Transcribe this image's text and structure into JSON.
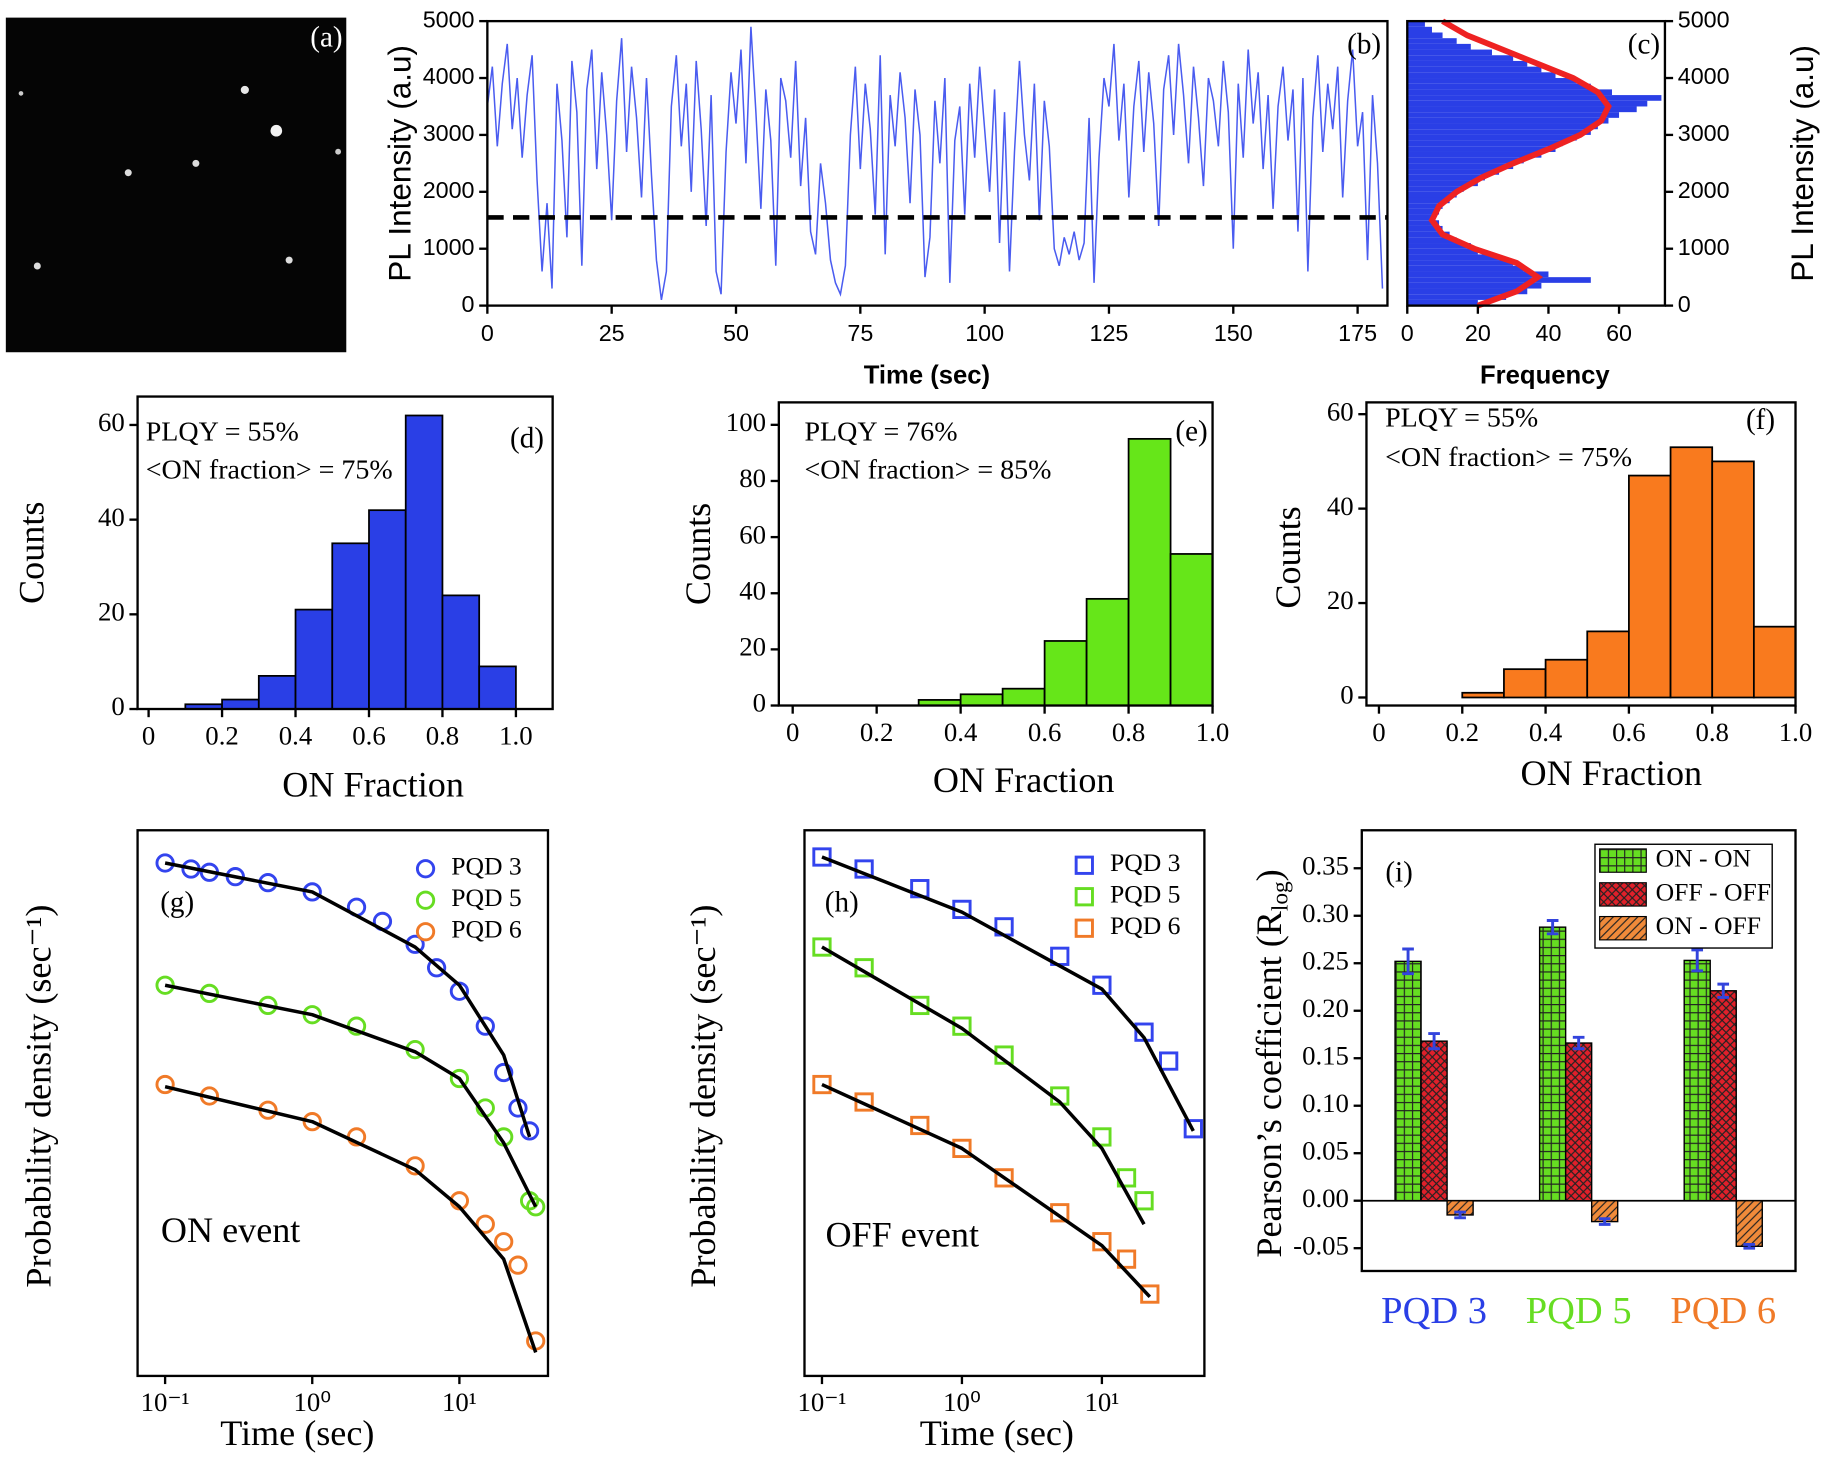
{
  "chart_data": [
    {
      "type": "image",
      "label": "(a)"
    },
    {
      "type": "line",
      "label": "(b)",
      "xlabel": "Time (sec)",
      "ylabel": "PL Intensity (a.u)",
      "xlim": [
        0,
        181
      ],
      "ylim": [
        0,
        5000
      ],
      "xticks": [
        0,
        25,
        50,
        75,
        100,
        125,
        150,
        175
      ],
      "yticks": [
        0,
        1000,
        2000,
        3000,
        4000,
        5000
      ],
      "color": "#4a5cf0",
      "threshold": 1550,
      "threshold_color": "#000000",
      "x": [
        0,
        1,
        2,
        3,
        4,
        5,
        6,
        7,
        8,
        9,
        10,
        11,
        12,
        13,
        14,
        15,
        16,
        17,
        18,
        19,
        20,
        21,
        22,
        23,
        24,
        25,
        26,
        27,
        28,
        29,
        30,
        31,
        32,
        33,
        34,
        35,
        36,
        37,
        38,
        39,
        40,
        41,
        42,
        43,
        44,
        45,
        46,
        47,
        48,
        49,
        50,
        51,
        52,
        53,
        54,
        55,
        56,
        57,
        58,
        59,
        60,
        61,
        62,
        63,
        64,
        65,
        66,
        67,
        68,
        69,
        70,
        71,
        72,
        73,
        74,
        75,
        76,
        77,
        78,
        79,
        80,
        81,
        82,
        83,
        84,
        85,
        86,
        87,
        88,
        89,
        90,
        91,
        92,
        93,
        94,
        95,
        96,
        97,
        98,
        99,
        100,
        101,
        102,
        103,
        104,
        105,
        106,
        107,
        108,
        109,
        110,
        111,
        112,
        113,
        114,
        115,
        116,
        117,
        118,
        119,
        120,
        121,
        122,
        123,
        124,
        125,
        126,
        127,
        128,
        129,
        130,
        131,
        132,
        133,
        134,
        135,
        136,
        137,
        138,
        139,
        140,
        141,
        142,
        143,
        144,
        145,
        146,
        147,
        148,
        149,
        150,
        151,
        152,
        153,
        154,
        155,
        156,
        157,
        158,
        159,
        160,
        161,
        162,
        163,
        164,
        165,
        166,
        167,
        168,
        169,
        170,
        171,
        172,
        173,
        174,
        175,
        176,
        177,
        178,
        179,
        180
      ],
      "values": [
        3500,
        4200,
        2800,
        3900,
        4600,
        3100,
        4000,
        2600,
        3700,
        4400,
        2200,
        600,
        1800,
        300,
        3900,
        2900,
        1200,
        4300,
        3400,
        700,
        3800,
        4500,
        2400,
        4100,
        3000,
        1500,
        3600,
        4700,
        2700,
        4200,
        3300,
        1900,
        4000,
        2300,
        800,
        100,
        600,
        3500,
        4400,
        2800,
        3900,
        2000,
        4300,
        3100,
        1400,
        3700,
        600,
        200,
        2700,
        4100,
        3200,
        4500,
        2500,
        4900,
        3400,
        1700,
        3800,
        2900,
        700,
        4000,
        3600,
        2600,
        4300,
        2100,
        3300,
        1300,
        900,
        2500,
        1800,
        800,
        400,
        200,
        700,
        3000,
        4200,
        2400,
        3900,
        3100,
        1600,
        4400,
        900,
        3700,
        2800,
        4100,
        3300,
        1800,
        3800,
        3000,
        500,
        1200,
        3600,
        2500,
        4000,
        400,
        2900,
        3500,
        1600,
        3900,
        2600,
        4200,
        3100,
        2000,
        3800,
        1100,
        3400,
        600,
        2700,
        4300,
        3000,
        2200,
        3900,
        1500,
        3600,
        2800,
        1000,
        700,
        1200,
        900,
        1300,
        800,
        1100,
        3300,
        400,
        2600,
        4000,
        3500,
        4600,
        2900,
        3900,
        1900,
        3500,
        4300,
        2700,
        4100,
        3200,
        1400,
        3800,
        4400,
        3000,
        4600,
        3700,
        2500,
        4200,
        3300,
        2100,
        4000,
        3600,
        2800,
        4300,
        3400,
        1000,
        3900,
        2600,
        4500,
        3200,
        4100,
        2400,
        3700,
        1700,
        3500,
        4200,
        2900,
        3800,
        1300,
        4000,
        600,
        3300,
        4400,
        2700,
        3900,
        3100,
        4200,
        1900,
        3600,
        4500,
        2800,
        3400,
        800,
        3700,
        2500,
        300
      ]
    },
    {
      "type": "histogram",
      "orientation": "horizontal",
      "y_axis_side": "right",
      "label": "(c)",
      "xlabel": "Frequency",
      "ylabel": "PL Intensity (a.u)",
      "xlim": [
        0,
        73
      ],
      "ylim": [
        0,
        5000
      ],
      "xticks": [
        0,
        20,
        40,
        60
      ],
      "yticks": [
        0,
        1000,
        2000,
        3000,
        4000,
        5000
      ],
      "color": "#2a3fe6",
      "bins": [
        0,
        100,
        200,
        300,
        400,
        500,
        600,
        700,
        800,
        900,
        1000,
        1100,
        1200,
        1300,
        1400,
        1500,
        1600,
        1700,
        1800,
        1900,
        2000,
        2100,
        2200,
        2300,
        2400,
        2500,
        2600,
        2700,
        2800,
        2900,
        3000,
        3100,
        3200,
        3300,
        3400,
        3500,
        3600,
        3700,
        3800,
        3900,
        4000,
        4100,
        4200,
        4300,
        4400,
        4500,
        4600,
        4700,
        4800,
        4900,
        5000
      ],
      "counts": [
        20,
        28,
        34,
        38,
        52,
        40,
        33,
        30,
        26,
        20,
        18,
        14,
        12,
        10,
        9,
        8,
        9,
        10,
        12,
        14,
        16,
        20,
        22,
        26,
        30,
        33,
        38,
        42,
        44,
        48,
        52,
        54,
        57,
        60,
        65,
        68,
        72,
        58,
        52,
        48,
        42,
        38,
        34,
        30,
        24,
        18,
        14,
        10,
        7,
        5
      ],
      "fit": {
        "color": "#ee2222",
        "y": [
          0,
          250,
          500,
          750,
          1000,
          1250,
          1500,
          1750,
          2000,
          2250,
          2500,
          2750,
          3000,
          3250,
          3500,
          3750,
          4000,
          4250,
          4500,
          4750,
          5000
        ],
        "values": [
          20,
          31,
          37,
          31,
          19,
          10,
          7,
          9,
          14,
          21,
          30,
          40,
          49,
          55,
          57,
          54,
          47,
          37,
          27,
          17,
          10
        ]
      }
    },
    {
      "type": "histogram",
      "label": "(d)",
      "xlabel": "ON Fraction",
      "ylabel": "Counts",
      "annotations": [
        "PLQY = 55%",
        "<ON fraction> = 75%"
      ],
      "xlim": [
        -0.03,
        1.1
      ],
      "ylim": [
        0,
        66
      ],
      "xticks": [
        0,
        0.2,
        0.4,
        0.6,
        0.8,
        {
          "value": 1,
          "label": "1.0"
        }
      ],
      "yticks": [
        0,
        20,
        40,
        60
      ],
      "color": "#2a3fe6",
      "bins": [
        0.1,
        0.2,
        0.3,
        0.4,
        0.5,
        0.6,
        0.7,
        0.8,
        0.9,
        1.0,
        1.1
      ],
      "counts": [
        1,
        2,
        7,
        21,
        35,
        42,
        62,
        24,
        9,
        0
      ]
    },
    {
      "type": "histogram",
      "label": "(e)",
      "xlabel": "ON Fraction",
      "ylabel": "Counts",
      "annotations": [
        "PLQY = 76%",
        "<ON fraction> = 85%"
      ],
      "xlim": [
        -0.033,
        1.0
      ],
      "ylim": [
        0,
        108
      ],
      "xticks": [
        0,
        0.2,
        0.4,
        0.6,
        0.8,
        {
          "value": 1,
          "label": "1.0"
        }
      ],
      "yticks": [
        0,
        20,
        40,
        60,
        80,
        100
      ],
      "color": "#66e619",
      "bins": [
        0,
        0.1,
        0.2,
        0.3,
        0.4,
        0.5,
        0.6,
        0.7,
        0.8,
        0.9,
        1.0
      ],
      "counts": [
        0,
        0,
        0,
        2,
        4,
        6,
        23,
        38,
        95,
        54
      ]
    },
    {
      "type": "histogram",
      "label": "(f)",
      "xlabel": "ON Fraction",
      "ylabel": "Counts",
      "annotations": [
        "PLQY = 55%",
        "<ON fraction> = 75%"
      ],
      "xlim": [
        -0.03,
        1.0
      ],
      "ylim": [
        -1.7,
        62.5
      ],
      "xticks": [
        0,
        0.2,
        0.4,
        0.6,
        0.8,
        {
          "value": 1,
          "label": "1.0"
        }
      ],
      "yticks": [
        0,
        20,
        40,
        60
      ],
      "color": "#f97a1e",
      "bins": [
        0,
        0.1,
        0.2,
        0.3,
        0.4,
        0.5,
        0.6,
        0.7,
        0.8,
        0.9,
        1.0
      ],
      "counts": [
        0,
        0,
        1,
        6,
        8,
        14,
        47,
        53,
        50,
        15
      ]
    },
    {
      "type": "scatter",
      "label": "(g)",
      "xlabel": "Time (sec)",
      "ylabel": "Probability density (sec⁻¹)",
      "annotations": [
        "ON event"
      ],
      "xlog": true,
      "xlim": [
        0.065,
        40
      ],
      "ylim": [
        0,
        100
      ],
      "xticks": [
        {
          "value": 0.1,
          "label": "10⁻¹"
        },
        {
          "value": 1,
          "label": "10⁰"
        },
        {
          "value": 10,
          "label": "10¹"
        }
      ],
      "series": [
        {
          "name": "PQD 3",
          "color": "#3344ee",
          "marker": "circle",
          "x": [
            0.1,
            0.15,
            0.2,
            0.3,
            0.5,
            1,
            2,
            3,
            5,
            7,
            10,
            15,
            20,
            25,
            30
          ],
          "values": [
            94.0,
            92.9,
            92.3,
            91.5,
            90.4,
            88.7,
            85.9,
            83.3,
            79.1,
            74.8,
            70.5,
            64.1,
            55.6,
            49.1,
            44.9
          ]
        },
        {
          "name": "PQD 5",
          "color": "#66dd22",
          "marker": "circle",
          "x": [
            0.1,
            0.2,
            0.5,
            1,
            2,
            5,
            10,
            15,
            20,
            30,
            33
          ],
          "values": [
            71.6,
            70.1,
            67.9,
            66.2,
            64.1,
            59.8,
            54.5,
            49.1,
            43.8,
            32.1,
            31.0
          ]
        },
        {
          "name": "PQD 6",
          "color": "#f07a28",
          "marker": "circle",
          "x": [
            0.1,
            0.2,
            0.5,
            1,
            2,
            5,
            10,
            15,
            20,
            25,
            33
          ],
          "values": [
            53.4,
            51.3,
            48.7,
            46.6,
            43.8,
            38.5,
            32.1,
            27.8,
            24.6,
            20.3,
            6.4
          ]
        }
      ],
      "fits": [
        {
          "color": "#000000",
          "x": [
            0.1,
            1,
            5,
            10,
            20,
            30
          ],
          "values": [
            94.0,
            88.7,
            78.6,
            71.6,
            58.8,
            43.8
          ]
        },
        {
          "color": "#000000",
          "x": [
            0.1,
            1,
            5,
            10,
            20,
            33
          ],
          "values": [
            71.6,
            66.2,
            59.4,
            54.5,
            42.7,
            31.0
          ]
        },
        {
          "color": "#000000",
          "x": [
            0.1,
            1,
            5,
            10,
            20,
            33
          ],
          "values": [
            53.0,
            46.6,
            37.8,
            31.0,
            21.4,
            4.3
          ]
        }
      ]
    },
    {
      "type": "scatter",
      "label": "(h)",
      "xlabel": "Time (sec)",
      "ylabel": "Probability density (sec⁻¹)",
      "annotations": [
        "OFF event"
      ],
      "xlog": true,
      "xlim": [
        0.075,
        54
      ],
      "ylim": [
        0,
        100
      ],
      "xticks": [
        {
          "value": 0.1,
          "label": "10⁻¹"
        },
        {
          "value": 1,
          "label": "10⁰"
        },
        {
          "value": 10,
          "label": "10¹"
        }
      ],
      "series": [
        {
          "name": "PQD 3",
          "color": "#3344ee",
          "marker": "square",
          "x": [
            0.1,
            0.2,
            0.5,
            1,
            2,
            5,
            10,
            20,
            30,
            45
          ],
          "values": [
            95.1,
            92.9,
            89.3,
            85.5,
            82.3,
            76.9,
            71.6,
            63.0,
            57.7,
            45.3
          ]
        },
        {
          "name": "PQD 5",
          "color": "#66dd22",
          "marker": "square",
          "x": [
            0.1,
            0.2,
            0.5,
            1,
            2,
            5,
            10,
            15,
            20
          ],
          "values": [
            78.6,
            74.8,
            67.9,
            64.1,
            58.8,
            51.3,
            43.8,
            36.3,
            32.1
          ]
        },
        {
          "name": "PQD 6",
          "color": "#f07a28",
          "marker": "square",
          "x": [
            0.1,
            0.2,
            0.5,
            1,
            2,
            5,
            10,
            15,
            22
          ],
          "values": [
            53.4,
            50.2,
            45.9,
            41.7,
            36.3,
            29.9,
            24.6,
            21.4,
            15.0
          ]
        }
      ],
      "fits": [
        {
          "color": "#000000",
          "x": [
            0.1,
            1,
            10,
            20,
            45
          ],
          "values": [
            95.1,
            85.0,
            70.9,
            62.0,
            44.9
          ]
        },
        {
          "color": "#000000",
          "x": [
            0.1,
            1,
            5,
            10,
            20
          ],
          "values": [
            78.6,
            63.7,
            50.2,
            41.7,
            27.8
          ]
        },
        {
          "color": "#000000",
          "x": [
            0.1,
            1,
            10,
            22
          ],
          "values": [
            53.4,
            41.7,
            23.9,
            14.5
          ]
        }
      ]
    },
    {
      "type": "bar",
      "label": "(i)",
      "ylabel": {
        "text": "Pearson’s coefficient (R",
        "sub": "log",
        "tail": ")"
      },
      "ylim": [
        -0.074,
        0.39
      ],
      "yticks": [
        -0.05,
        {
          "value": 0,
          "label": "0.00"
        },
        0.05,
        {
          "value": 0.1,
          "label": "0.10"
        },
        0.15,
        {
          "value": 0.2,
          "label": "0.20"
        },
        0.25,
        {
          "value": 0.3,
          "label": "0.30"
        },
        0.35
      ],
      "categories": [
        "PQD 3",
        "PQD 5",
        "PQD 6"
      ],
      "category_colors": [
        "#2a3fe6",
        "#66dd22",
        "#f07a28"
      ],
      "error_color": "#3344dd",
      "series": [
        {
          "name": "ON - ON",
          "color": "#66dd22",
          "pattern": "grid",
          "values": [
            0.252,
            0.288,
            0.253
          ],
          "errors": [
            0.013,
            0.007,
            0.011
          ]
        },
        {
          "name": "OFF - OFF",
          "color": "#e0202a",
          "pattern": "cross",
          "values": [
            0.168,
            0.166,
            0.221
          ],
          "errors": [
            0.008,
            0.006,
            0.007
          ]
        },
        {
          "name": "ON - OFF",
          "color": "#f08a3a",
          "pattern": "diagonal",
          "values": [
            -0.015,
            -0.022,
            -0.048
          ],
          "errors": [
            0.003,
            0.003,
            0.002
          ]
        }
      ]
    }
  ]
}
